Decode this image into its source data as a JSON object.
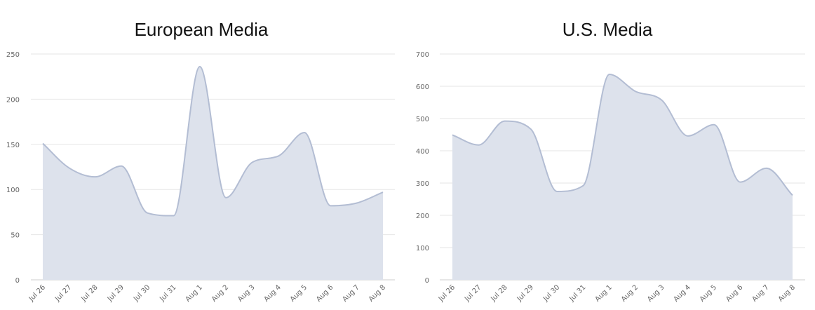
{
  "colors": {
    "area_fill": "#dde2ec",
    "area_stroke": "#b3bdd3",
    "grid": "#e6e6e6",
    "tick_text": "#666666",
    "title_text": "#111111"
  },
  "chart_data": [
    {
      "type": "area",
      "title": "European Media",
      "xlabel": "",
      "ylabel": "",
      "categories": [
        "Jul 26",
        "Jul 27",
        "Jul 28",
        "Jul 29",
        "Jul 30",
        "Jul 31",
        "Aug 1",
        "Aug 2",
        "Aug 3",
        "Aug 4",
        "Aug 5",
        "Aug 6",
        "Aug 7",
        "Aug 8"
      ],
      "values": [
        151,
        124,
        114,
        126,
        74,
        71,
        236,
        91,
        130,
        137,
        163,
        82,
        85,
        97
      ],
      "ylim": [
        0,
        250
      ],
      "yticks": [
        0,
        50,
        100,
        150,
        200,
        250
      ],
      "grid": true,
      "legend": "none"
    },
    {
      "type": "area",
      "title": "U.S. Media",
      "xlabel": "",
      "ylabel": "",
      "categories": [
        "Jul 26",
        "Jul 27",
        "Jul 28",
        "Jul 29",
        "Jul 30",
        "Jul 31",
        "Aug 1",
        "Aug 2",
        "Aug 3",
        "Aug 4",
        "Aug 5",
        "Aug 6",
        "Aug 7",
        "Aug 8"
      ],
      "values": [
        449,
        418,
        492,
        467,
        274,
        292,
        637,
        584,
        557,
        446,
        481,
        303,
        346,
        262
      ],
      "ylim": [
        0,
        700
      ],
      "yticks": [
        0,
        100,
        200,
        300,
        400,
        500,
        600,
        700
      ],
      "grid": true,
      "legend": "none"
    }
  ]
}
